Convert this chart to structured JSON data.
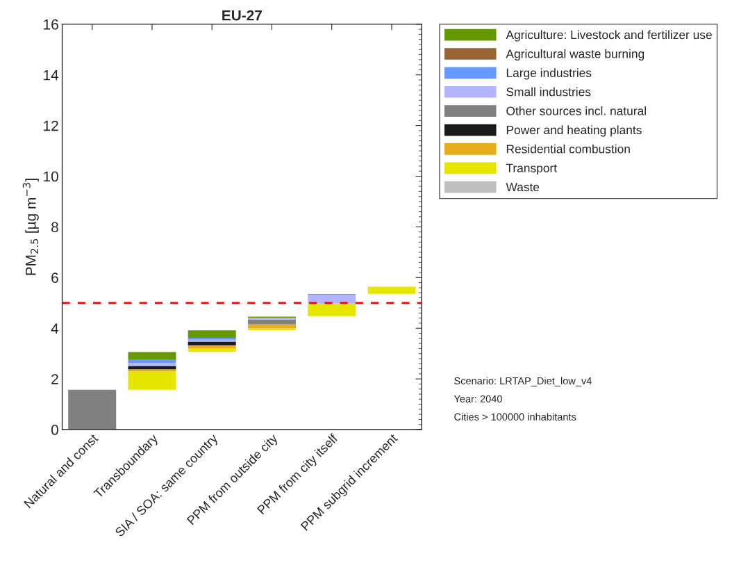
{
  "chart_data": {
    "type": "bar",
    "title": "EU-27",
    "ylabel": "PM$_{2.5}$ [µg m$^{−3}$]",
    "categories": [
      "Natural and const",
      "Transboundary",
      "SIA / SOA: same country",
      "PPM from outside city",
      "PPM from city itself",
      "PPM subgrid increment"
    ],
    "series": [
      {
        "name": "Waste",
        "color": "#bfbfbf",
        "values": [
          null,
          null,
          null,
          null,
          null,
          null
        ],
        "base": [
          null,
          null,
          null,
          null,
          null,
          null
        ]
      },
      {
        "name": "Transport",
        "color": "#e6e600",
        "values": [
          null,
          0.72,
          0.14,
          0.07,
          0.49,
          0.28
        ],
        "base": [
          null,
          1.57,
          3.07,
          3.92,
          4.48,
          5.36
        ]
      },
      {
        "name": "Residential combustion",
        "color": "#e6ac1a",
        "values": [
          null,
          0.09,
          0.12,
          0.17,
          null,
          null
        ],
        "base": [
          null,
          2.29,
          3.21,
          3.99,
          null,
          null
        ]
      },
      {
        "name": "Power and heating plants",
        "color": "#1a1a1a",
        "values": [
          null,
          0.13,
          0.14,
          null,
          null,
          null
        ],
        "base": [
          null,
          2.38,
          3.33,
          null,
          null,
          null
        ]
      },
      {
        "name": "Other sources incl. natural",
        "color": "#808080",
        "values": [
          1.57,
          null,
          null,
          0.18,
          null,
          null
        ],
        "base": [
          0,
          null,
          null,
          4.16,
          null,
          null
        ]
      },
      {
        "name": "Small industries",
        "color": "#b3b3ff",
        "values": [
          null,
          0.12,
          0.08,
          0.07,
          0.34,
          null
        ],
        "base": [
          null,
          2.51,
          3.47,
          4.34,
          4.97,
          null
        ]
      },
      {
        "name": "Large industries",
        "color": "#6699ff",
        "values": [
          null,
          0.12,
          0.07,
          null,
          0.04,
          null
        ],
        "base": [
          null,
          2.63,
          3.55,
          null,
          5.31,
          null
        ]
      },
      {
        "name": "Agricultural waste burning",
        "color": "#996633",
        "values": [
          null,
          null,
          null,
          null,
          null,
          null
        ],
        "base": [
          null,
          null,
          null,
          null,
          null,
          null
        ]
      },
      {
        "name": "Agriculture: Livestock and fertilizer use",
        "color": "#669900",
        "values": [
          null,
          0.31,
          0.3,
          0.05,
          null,
          null
        ],
        "base": [
          null,
          2.75,
          3.62,
          4.41,
          null,
          null
        ]
      }
    ],
    "ylim": [
      0,
      16
    ],
    "yticks": [
      0,
      2,
      4,
      6,
      8,
      10,
      12,
      14,
      16
    ],
    "ref_lines": [
      {
        "axis": "y",
        "value": 5,
        "color": "#ff0000",
        "line_style": "dashed"
      }
    ],
    "legend": "top right",
    "grid": false,
    "annotations": [
      "Scenario: LRTAP_Diet_low_v4",
      "Year: 2040",
      "Cities > 100000 inhabitants"
    ]
  }
}
